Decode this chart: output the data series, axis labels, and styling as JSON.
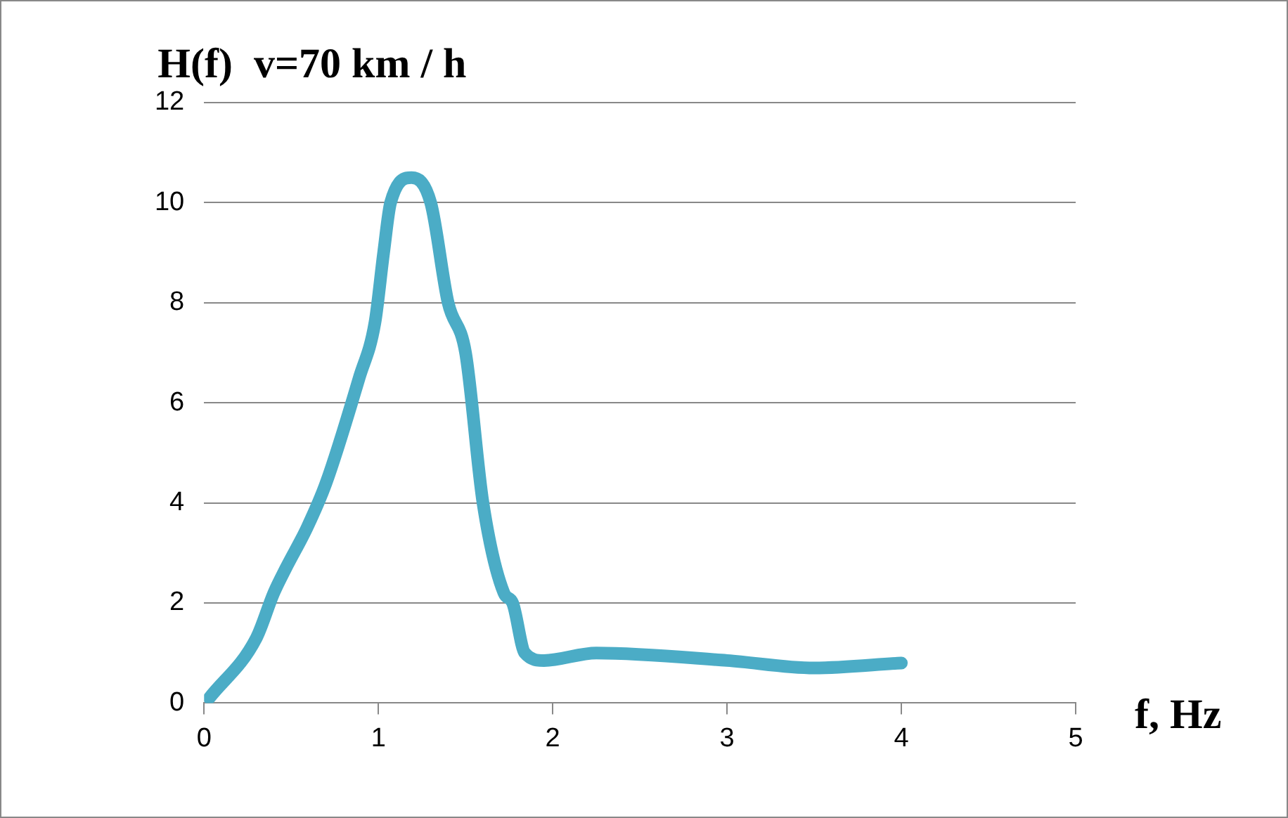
{
  "chart_data": {
    "type": "line",
    "title": "H(f)  v=70 km / h",
    "xlabel": "f, Hz",
    "xlim": [
      0,
      5
    ],
    "xticks": [
      0,
      1,
      2,
      3,
      4,
      5
    ],
    "ylim": [
      0,
      12
    ],
    "yticks": [
      0,
      2,
      4,
      6,
      8,
      10,
      12
    ],
    "grid": "y",
    "marker": "none",
    "line_style": "solid",
    "legend": false,
    "series": [
      {
        "color": "#4bacc6",
        "x": [
          0.03,
          0.3,
          0.4,
          0.47,
          0.59,
          0.7,
          0.89,
          0.98,
          1.03,
          1.07,
          1.19,
          1.3,
          1.4,
          1.5,
          1.6,
          1.72,
          1.77,
          1.84,
          1.95,
          2.25,
          3.0,
          3.5,
          4.0
        ],
        "values": [
          0.1,
          1.3,
          2.2,
          2.7,
          3.5,
          4.4,
          6.5,
          7.6,
          9.0,
          10.0,
          10.5,
          10.0,
          8.0,
          7.0,
          4.0,
          2.2,
          2.0,
          1.0,
          0.85,
          1.0,
          0.85,
          0.7,
          0.8
        ]
      }
    ]
  }
}
